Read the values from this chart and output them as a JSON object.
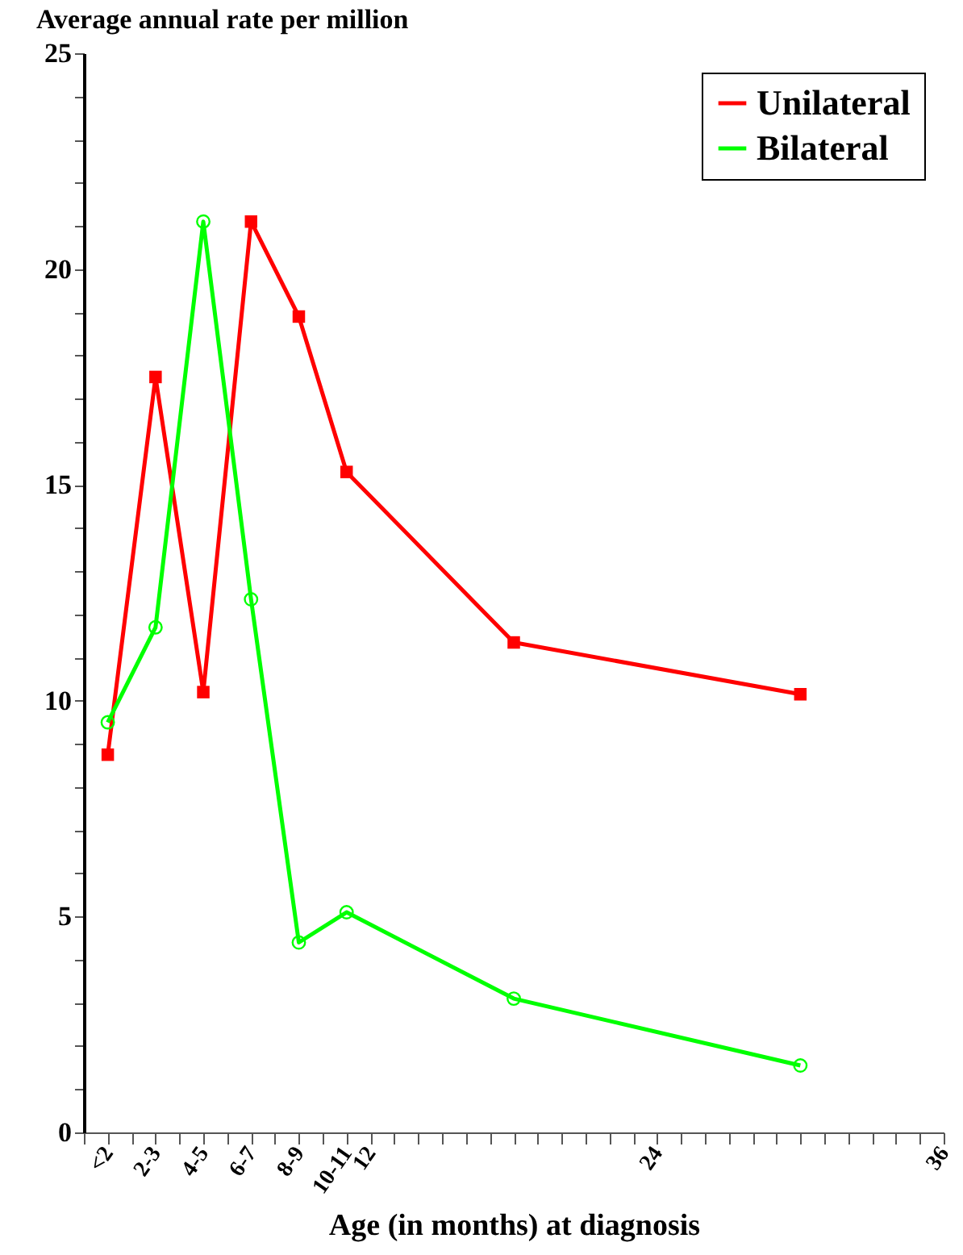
{
  "chart_data": {
    "type": "line",
    "ylabel": "Average annual rate per million",
    "xlabel": "Age (in months) at diagnosis",
    "x": [
      1,
      3,
      5,
      7,
      9,
      11,
      18,
      30
    ],
    "series": [
      {
        "name": "Unilateral",
        "color": "#ff0000",
        "marker": "square",
        "values": [
          8.75,
          17.5,
          10.2,
          21.1,
          18.9,
          15.3,
          11.35,
          10.15
        ]
      },
      {
        "name": "Bilateral",
        "color": "#00ff00",
        "marker": "circle",
        "values": [
          9.5,
          11.7,
          21.1,
          12.35,
          4.4,
          5.1,
          3.1,
          1.55
        ]
      }
    ],
    "xlim": [
      0,
      36
    ],
    "xticks": [
      {
        "value": 0,
        "label": null
      },
      {
        "value": 1,
        "label": "<2"
      },
      {
        "value": 2,
        "label": null
      },
      {
        "value": 3,
        "label": "2-3"
      },
      {
        "value": 4,
        "label": null
      },
      {
        "value": 5,
        "label": "4-5"
      },
      {
        "value": 6,
        "label": null
      },
      {
        "value": 7,
        "label": "6-7"
      },
      {
        "value": 8,
        "label": null
      },
      {
        "value": 9,
        "label": "8-9"
      },
      {
        "value": 10,
        "label": null
      },
      {
        "value": 11,
        "label": "10-11"
      },
      12,
      {
        "value": 13,
        "label": null
      },
      {
        "value": 14,
        "label": null
      },
      {
        "value": 15,
        "label": null
      },
      {
        "value": 16,
        "label": null
      },
      {
        "value": 17,
        "label": null
      },
      {
        "value": 18,
        "label": null
      },
      {
        "value": 19,
        "label": null
      },
      {
        "value": 20,
        "label": null
      },
      {
        "value": 21,
        "label": null
      },
      {
        "value": 22,
        "label": null
      },
      {
        "value": 23,
        "label": null
      },
      24,
      {
        "value": 25,
        "label": null
      },
      {
        "value": 26,
        "label": null
      },
      {
        "value": 27,
        "label": null
      },
      {
        "value": 28,
        "label": null
      },
      {
        "value": 29,
        "label": null
      },
      {
        "value": 30,
        "label": null
      },
      {
        "value": 31,
        "label": null
      },
      {
        "value": 32,
        "label": null
      },
      {
        "value": 33,
        "label": null
      },
      {
        "value": 34,
        "label": null
      },
      {
        "value": 35,
        "label": null
      },
      36
    ],
    "ylim": [
      0,
      25
    ],
    "yticks": [
      0,
      {
        "value": 1,
        "label": null
      },
      {
        "value": 2,
        "label": null
      },
      {
        "value": 3,
        "label": null
      },
      {
        "value": 4,
        "label": null
      },
      5,
      {
        "value": 6,
        "label": null
      },
      {
        "value": 7,
        "label": null
      },
      {
        "value": 8,
        "label": null
      },
      {
        "value": 9,
        "label": null
      },
      10,
      {
        "value": 11,
        "label": null
      },
      {
        "value": 12,
        "label": null
      },
      {
        "value": 13,
        "label": null
      },
      {
        "value": 14,
        "label": null
      },
      15,
      {
        "value": 16,
        "label": null
      },
      {
        "value": 17,
        "label": null
      },
      {
        "value": 18,
        "label": null
      },
      {
        "value": 19,
        "label": null
      },
      20,
      {
        "value": 21,
        "label": null
      },
      {
        "value": 22,
        "label": null
      },
      {
        "value": 23,
        "label": null
      },
      {
        "value": 24,
        "label": null
      },
      25
    ],
    "legend": "top right",
    "grid": false,
    "line_style": "solid"
  }
}
